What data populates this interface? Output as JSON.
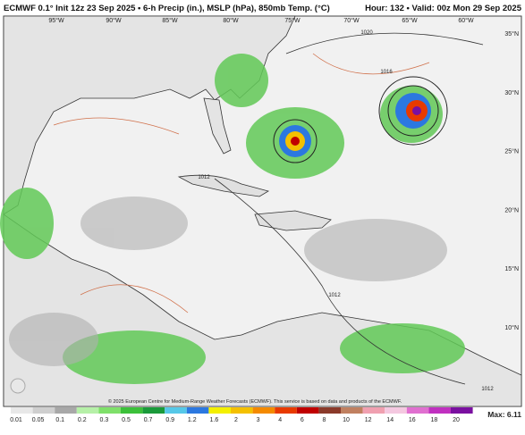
{
  "header": {
    "title": "ECMWF 0.1° Init 12z 23 Sep 2025 • 6-h Precip (in.), MSLP (hPa), 850mb Temp. (°C)",
    "valid": "Hour: 132 • Valid: 00z Mon 29 Sep 2025"
  },
  "map": {
    "longitudes": [
      "95°W",
      "90°W",
      "85°W",
      "80°W",
      "75°W",
      "70°W",
      "65°W",
      "60°W"
    ],
    "latitudes": [
      "35°N",
      "30°N",
      "25°N",
      "20°N",
      "15°N",
      "10°N"
    ],
    "isobars": [
      "1020",
      "1016",
      "1012",
      "1012",
      "1012"
    ],
    "credit": "© 2025 European Centre for Medium-Range Weather Forecasts (ECMWF). This service is based on data and products of the ECMWF."
  },
  "legend": {
    "labels": [
      "0.01",
      "0.05",
      "0.1",
      "0.2",
      "0.3",
      "0.5",
      "0.7",
      "0.9",
      "1.2",
      "1.6",
      "2",
      "3",
      "4",
      "6",
      "8",
      "10",
      "12",
      "14",
      "16",
      "18",
      "20"
    ],
    "colors": [
      "#e8e8e8",
      "#cfcfcf",
      "#a8a8a8",
      "#b6f0a8",
      "#7fe06a",
      "#3cc03a",
      "#1a9a3a",
      "#56c8e8",
      "#2c78e0",
      "#f4f000",
      "#f4c000",
      "#f48a00",
      "#e83a00",
      "#c00000",
      "#8a3a2a",
      "#c08060",
      "#f0a0b0",
      "#f4c8e0",
      "#e070d0",
      "#c030c0",
      "#7a10a0"
    ],
    "max": "Max: 6.11"
  }
}
